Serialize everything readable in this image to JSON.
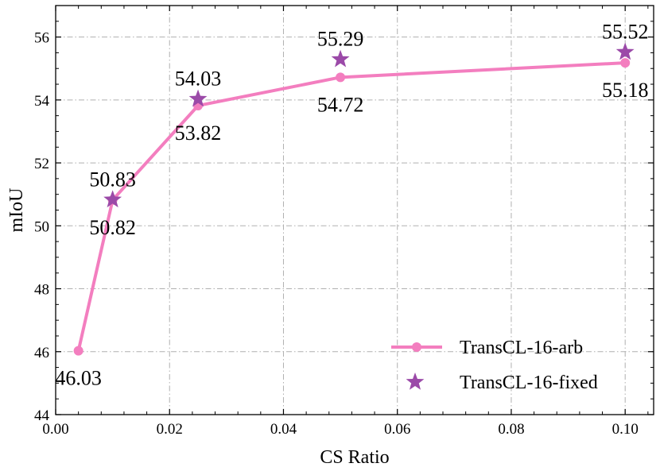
{
  "chart_data": {
    "type": "line",
    "xlabel": "CS Ratio",
    "ylabel": "mIoU",
    "xlim": [
      0.0,
      0.105
    ],
    "ylim": [
      44,
      57
    ],
    "x_ticks": [
      "0.00",
      "0.02",
      "0.04",
      "0.06",
      "0.08",
      "0.10"
    ],
    "x_tick_values": [
      0.0,
      0.02,
      0.04,
      0.06,
      0.08,
      0.1
    ],
    "y_ticks": [
      "44",
      "46",
      "48",
      "50",
      "52",
      "54",
      "56"
    ],
    "y_tick_values": [
      44,
      46,
      48,
      50,
      52,
      54,
      56
    ],
    "grid": true,
    "legend_position": "lower-right",
    "series": [
      {
        "name": "TransCL-16-arb",
        "marker": "circle",
        "color": "#f37ebf",
        "x": [
          0.004,
          0.01,
          0.025,
          0.05,
          0.1
        ],
        "y": [
          46.03,
          50.82,
          53.82,
          54.72,
          55.18
        ],
        "labels": [
          "46.03",
          "50.82",
          "53.82",
          "54.72",
          "55.18"
        ]
      },
      {
        "name": "TransCL-16-fixed",
        "marker": "star",
        "color": "#9b4aa8",
        "x": [
          0.01,
          0.025,
          0.05,
          0.1
        ],
        "y": [
          50.83,
          54.03,
          55.29,
          55.52
        ],
        "labels": [
          "50.83",
          "54.03",
          "55.29",
          "55.52"
        ]
      }
    ]
  }
}
